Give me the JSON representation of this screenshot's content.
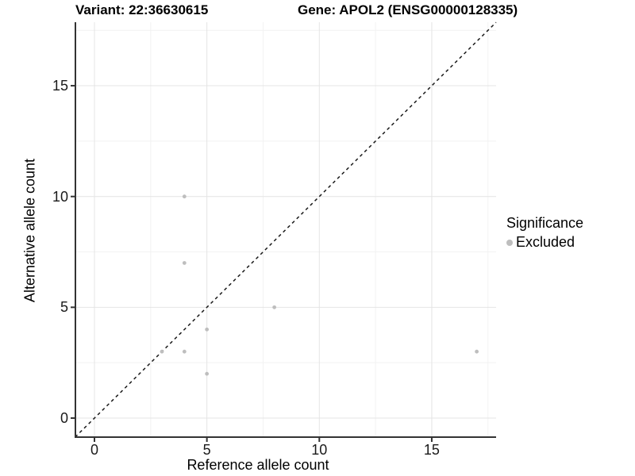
{
  "chart_data": {
    "type": "scatter",
    "title_left": "Variant: 22:36630615",
    "title_right": "Gene: APOL2 (ENSG00000128335)",
    "xlabel": "Reference allele count",
    "ylabel": "Alternative allele count",
    "x_ticks": [
      0,
      5,
      10,
      15
    ],
    "y_ticks": [
      0,
      5,
      10,
      15
    ],
    "minor_grid_positions": [
      2.5,
      7.5,
      12.5,
      17.5
    ],
    "xlim": [
      -0.86,
      17.86
    ],
    "ylim": [
      -0.86,
      17.86
    ],
    "grid": true,
    "legend_position": "right",
    "identity_line": {
      "style": "dashed",
      "color": "#1a1a1a",
      "from": [
        -0.86,
        -0.86
      ],
      "to": [
        17.86,
        17.86
      ]
    },
    "legend": {
      "title": "Significance",
      "entries": [
        {
          "label": "Excluded",
          "color": "#bebebe"
        }
      ]
    },
    "series": [
      {
        "name": "Excluded",
        "color": "#bebebe",
        "points": [
          [
            3,
            3
          ],
          [
            4,
            3
          ],
          [
            4,
            7
          ],
          [
            4,
            10
          ],
          [
            5,
            2
          ],
          [
            5,
            4
          ],
          [
            8,
            5
          ],
          [
            17,
            3
          ]
        ]
      }
    ],
    "colors": {
      "major_grid": "#e4e4e4",
      "minor_grid": "#f2f2f2",
      "axis_line": "#333333",
      "point": "#bebebe",
      "background": "#ffffff"
    }
  }
}
